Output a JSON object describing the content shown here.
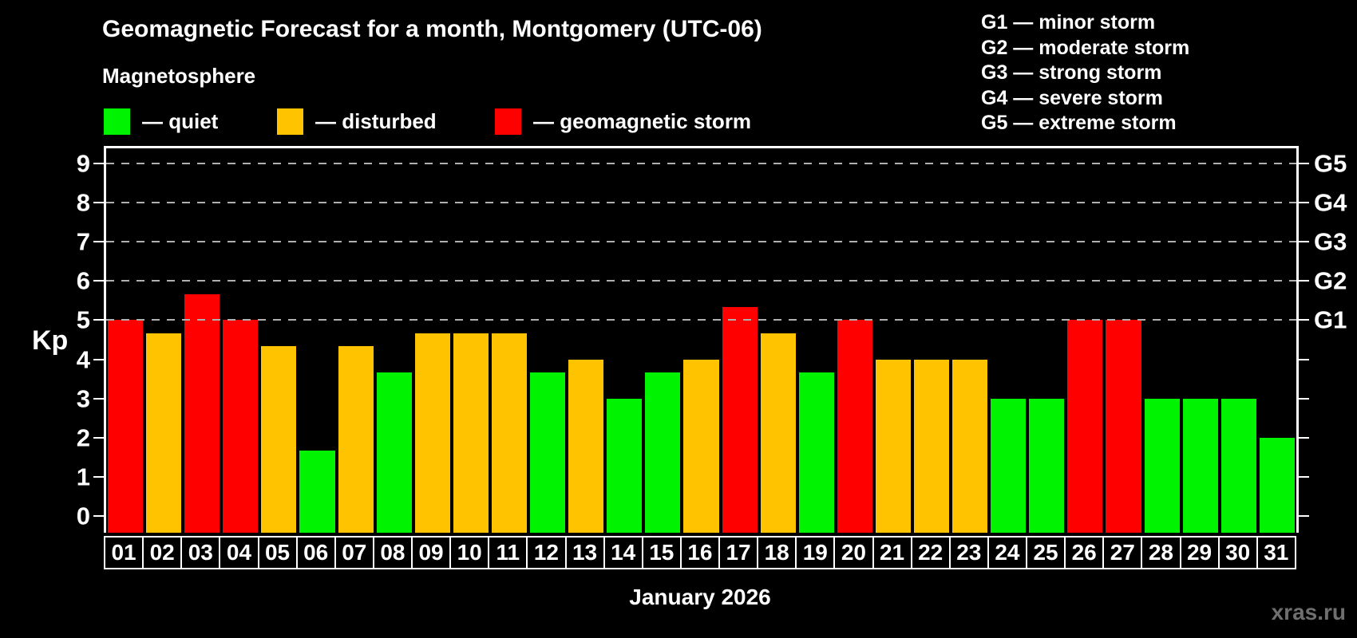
{
  "title": "Geomagnetic Forecast for a month, Montgomery (UTC-06)",
  "subtitle": "Magnetosphere",
  "legend": {
    "items": [
      {
        "status": "quiet",
        "label": "— quiet",
        "color": "#00f300"
      },
      {
        "status": "disturbed",
        "label": "— disturbed",
        "color": "#ffc300"
      },
      {
        "status": "storm",
        "label": "— geomagnetic storm",
        "color": "#ff0000"
      }
    ]
  },
  "storm_scale_legend": {
    "lines": [
      "G1 — minor storm",
      "G2 — moderate storm",
      "G3 — strong storm",
      "G4 — severe storm",
      "G5 — extreme storm"
    ]
  },
  "footer": {
    "xlabel": "January 2026",
    "watermark": "xras.ru"
  },
  "chart_data": {
    "type": "bar",
    "title": "Geomagnetic Forecast for a month, Montgomery (UTC-06)",
    "xlabel": "January 2026",
    "ylabel": "Kp",
    "ylim": [
      0,
      9
    ],
    "y_ticks": [
      0,
      1,
      2,
      3,
      4,
      5,
      6,
      7,
      8,
      9
    ],
    "gridlines_at": [
      5,
      6,
      7,
      8,
      9
    ],
    "grid": "dashed horizontal gridlines at Kp 5-9 only",
    "legend_position": "top-left",
    "right_axis": {
      "labels": [
        "G1",
        "G2",
        "G3",
        "G4",
        "G5"
      ],
      "at_kp": [
        5,
        6,
        7,
        8,
        9
      ]
    },
    "categories": [
      "01",
      "02",
      "03",
      "04",
      "05",
      "06",
      "07",
      "08",
      "09",
      "10",
      "11",
      "12",
      "13",
      "14",
      "15",
      "16",
      "17",
      "18",
      "19",
      "20",
      "21",
      "22",
      "23",
      "24",
      "25",
      "26",
      "27",
      "28",
      "29",
      "30",
      "31"
    ],
    "values": [
      5.0,
      4.67,
      5.67,
      5.0,
      4.33,
      1.67,
      4.33,
      3.67,
      4.67,
      4.67,
      4.67,
      3.67,
      4.0,
      3.0,
      3.67,
      4.0,
      5.33,
      4.67,
      3.67,
      5.0,
      4.0,
      4.0,
      4.0,
      3.0,
      3.0,
      5.0,
      5.0,
      3.0,
      3.0,
      3.0,
      2.0
    ],
    "statuses": [
      "storm",
      "disturbed",
      "storm",
      "storm",
      "disturbed",
      "quiet",
      "disturbed",
      "quiet",
      "disturbed",
      "disturbed",
      "disturbed",
      "quiet",
      "disturbed",
      "quiet",
      "quiet",
      "disturbed",
      "storm",
      "disturbed",
      "quiet",
      "storm",
      "disturbed",
      "disturbed",
      "disturbed",
      "quiet",
      "quiet",
      "storm",
      "storm",
      "quiet",
      "quiet",
      "quiet",
      "quiet"
    ],
    "status_colors": {
      "quiet": "#00f300",
      "disturbed": "#ffc300",
      "storm": "#ff0000"
    }
  }
}
